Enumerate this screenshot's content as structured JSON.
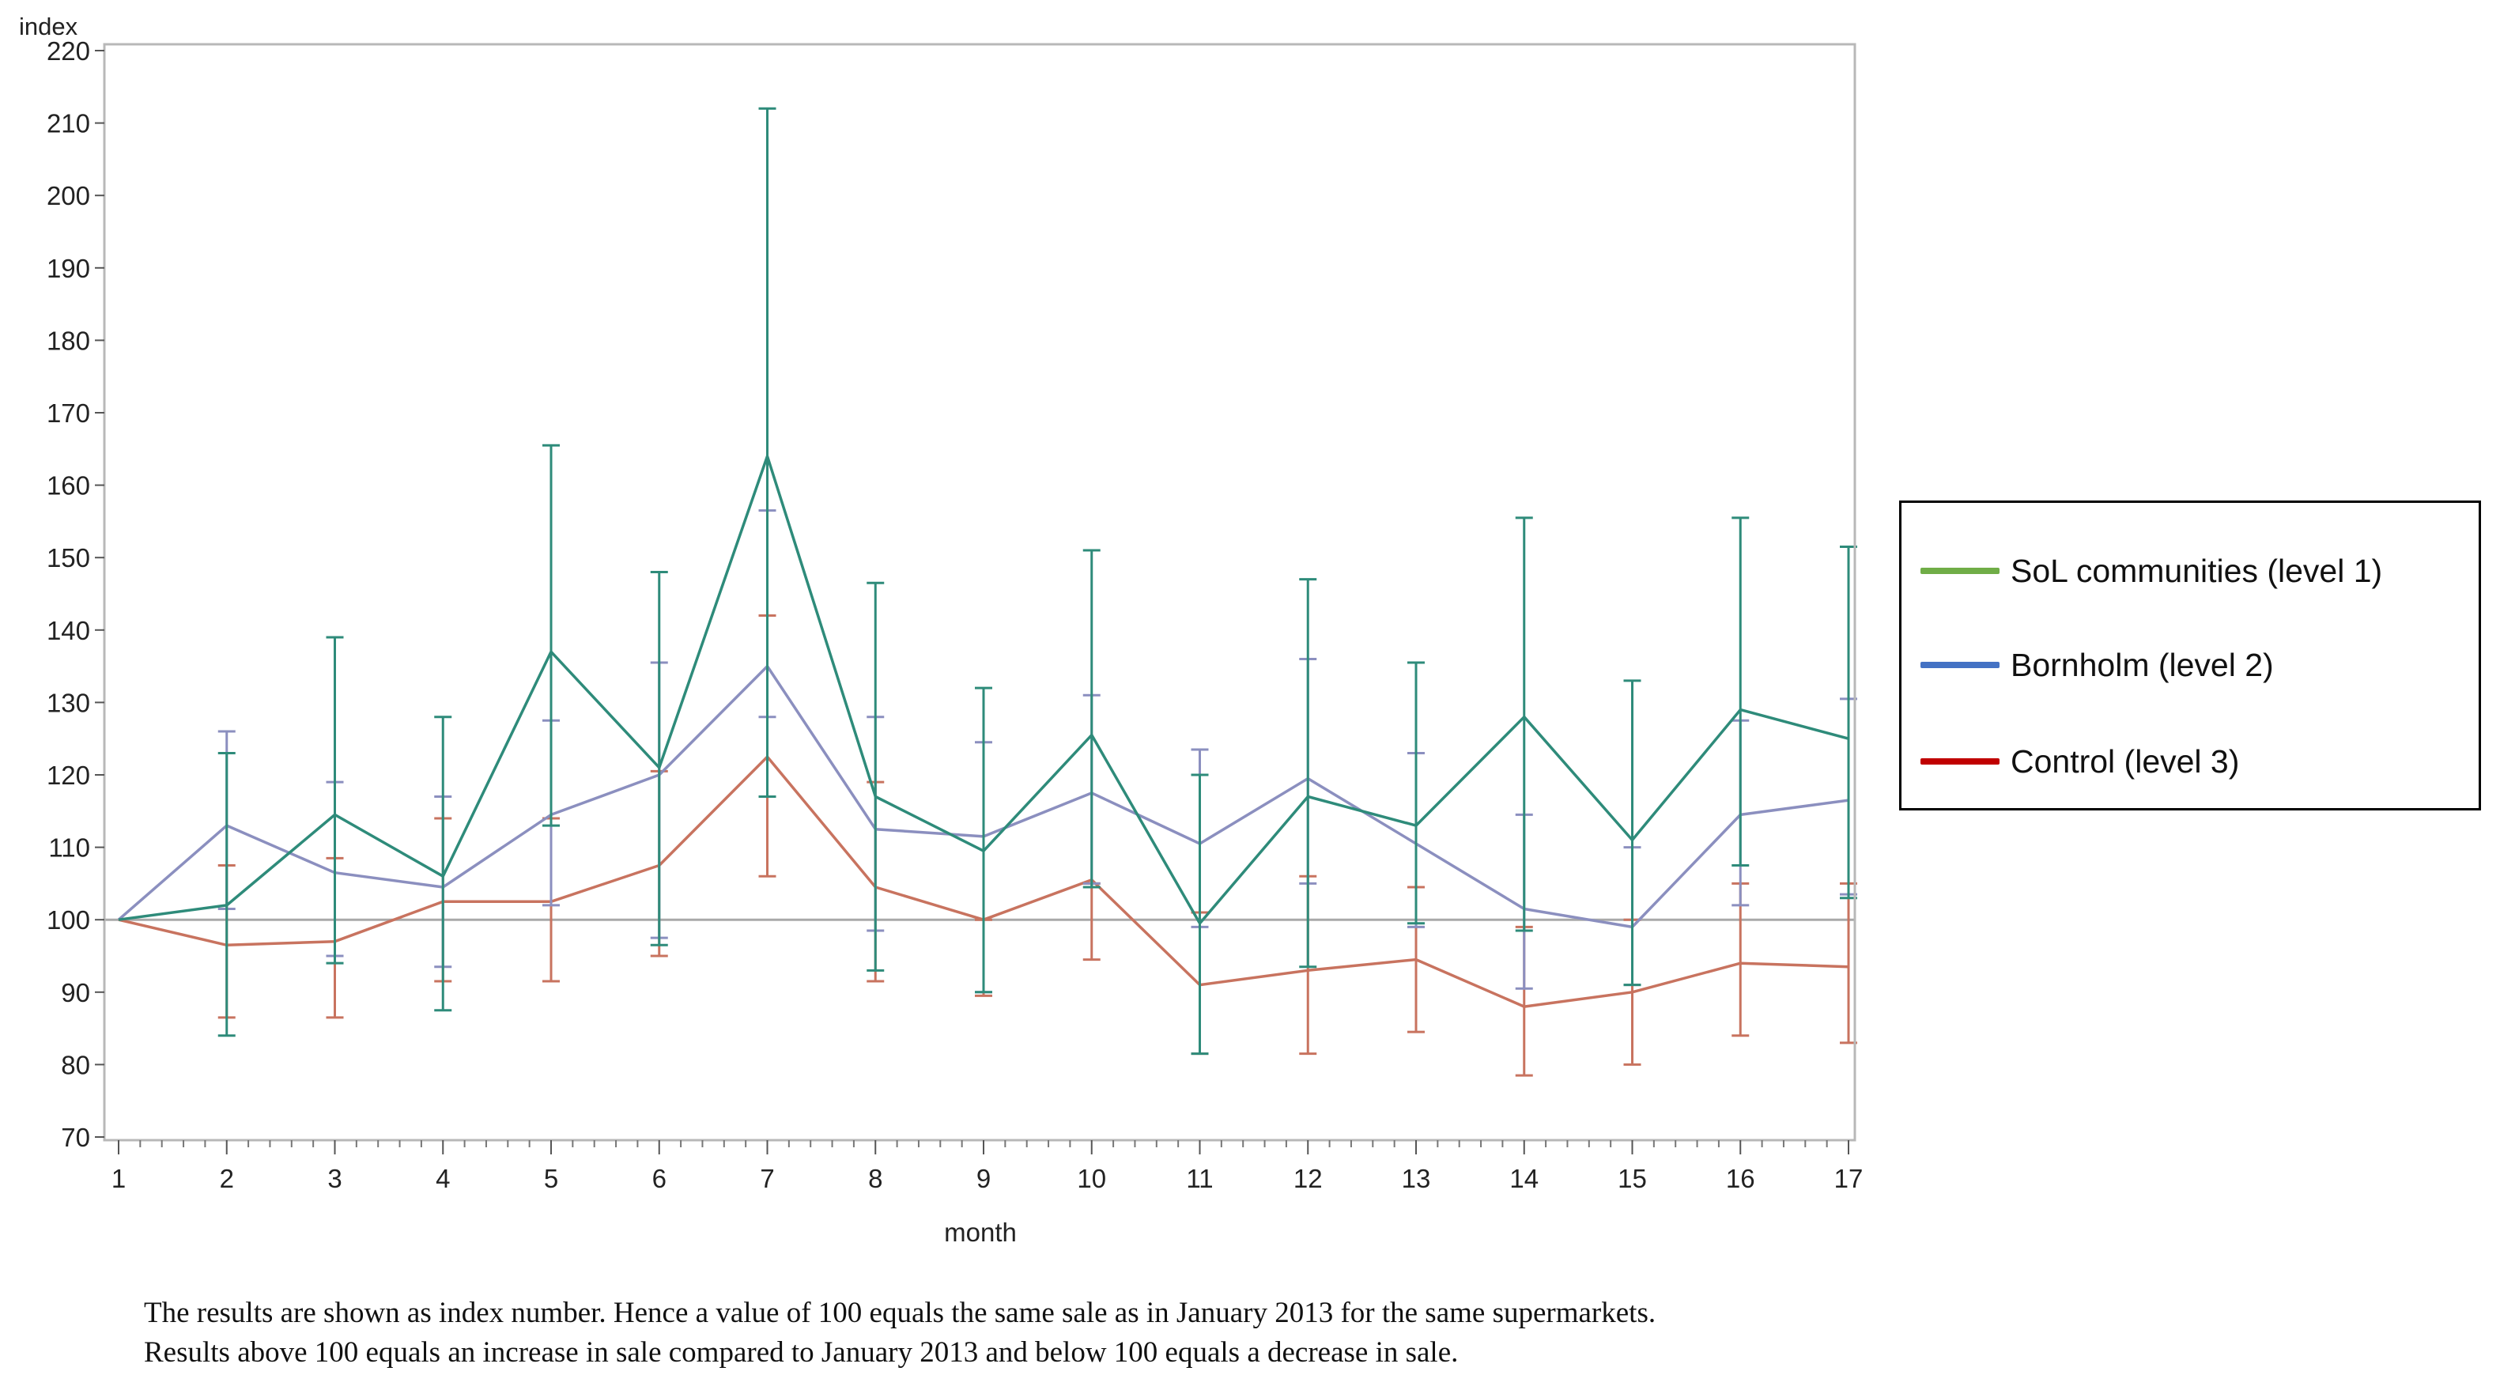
{
  "chart_data": {
    "type": "line",
    "title": "",
    "xlabel": "month",
    "ylabel": "index",
    "x": [
      1,
      2,
      3,
      4,
      5,
      6,
      7,
      8,
      9,
      10,
      11,
      12,
      13,
      14,
      15,
      16,
      17
    ],
    "xlim": [
      1,
      17
    ],
    "ylim": [
      70,
      220
    ],
    "yticks": [
      70,
      80,
      90,
      100,
      110,
      120,
      130,
      140,
      150,
      160,
      170,
      180,
      190,
      200,
      210,
      220
    ],
    "reference_line": 100,
    "grid": false,
    "legend_position": "right",
    "series": [
      {
        "name": "SoL communities (level 1)",
        "color": "#2e8b7a",
        "legend_color": "#70ad47",
        "values": [
          100,
          102,
          114.5,
          106,
          137,
          121,
          164,
          117,
          109.5,
          125.5,
          99.5,
          117,
          113,
          128,
          111,
          129,
          125
        ],
        "lower": [
          100,
          84,
          94,
          87.5,
          113,
          96.5,
          117,
          93,
          90,
          104.5,
          81.5,
          93.5,
          99.5,
          98.5,
          91,
          107.5,
          103
        ],
        "upper": [
          100,
          123,
          139,
          128,
          165.5,
          148,
          212,
          146.5,
          132,
          151,
          120,
          147,
          135.5,
          155.5,
          133,
          155.5,
          151.5
        ]
      },
      {
        "name": "Bornholm (level 2)",
        "color": "#8b8fbf",
        "legend_color": "#4472c4",
        "values": [
          100,
          113,
          106.5,
          104.5,
          114.5,
          120,
          135,
          112.5,
          111.5,
          117.5,
          110.5,
          119.5,
          110.5,
          101.5,
          99,
          114.5,
          116.5
        ],
        "lower": [
          100,
          101.5,
          95,
          93.5,
          102,
          97.5,
          128,
          98.5,
          90,
          105,
          99,
          105,
          99,
          90.5,
          91,
          102,
          103.5
        ],
        "upper": [
          100,
          126,
          119,
          117,
          127.5,
          135.5,
          156.5,
          128,
          124.5,
          131,
          123.5,
          136,
          123,
          114.5,
          110,
          127.5,
          130.5
        ]
      },
      {
        "name": "Control (level 3)",
        "color": "#c8735f",
        "legend_color": "#c00000",
        "values": [
          100,
          96.5,
          97,
          102.5,
          102.5,
          107.5,
          122.5,
          104.5,
          100,
          105.5,
          91,
          93,
          94.5,
          88,
          90,
          94,
          93.5
        ],
        "lower": [
          100,
          86.5,
          86.5,
          91.5,
          91.5,
          95,
          106,
          91.5,
          89.5,
          94.5,
          81.5,
          81.5,
          84.5,
          78.5,
          80,
          84,
          83
        ],
        "upper": [
          100,
          107.5,
          108.5,
          114,
          114,
          120.5,
          142,
          119,
          100,
          105,
          101,
          106,
          104.5,
          99,
          100,
          105,
          105
        ]
      }
    ]
  },
  "caption": {
    "line1": "The results are shown as index number. Hence a value of 100  equals the same sale as in January 2013  for the same supermarkets.",
    "line2": "Results above 100  equals an increase in sale compared to January 2013  and below 100  equals a decrease in sale."
  }
}
